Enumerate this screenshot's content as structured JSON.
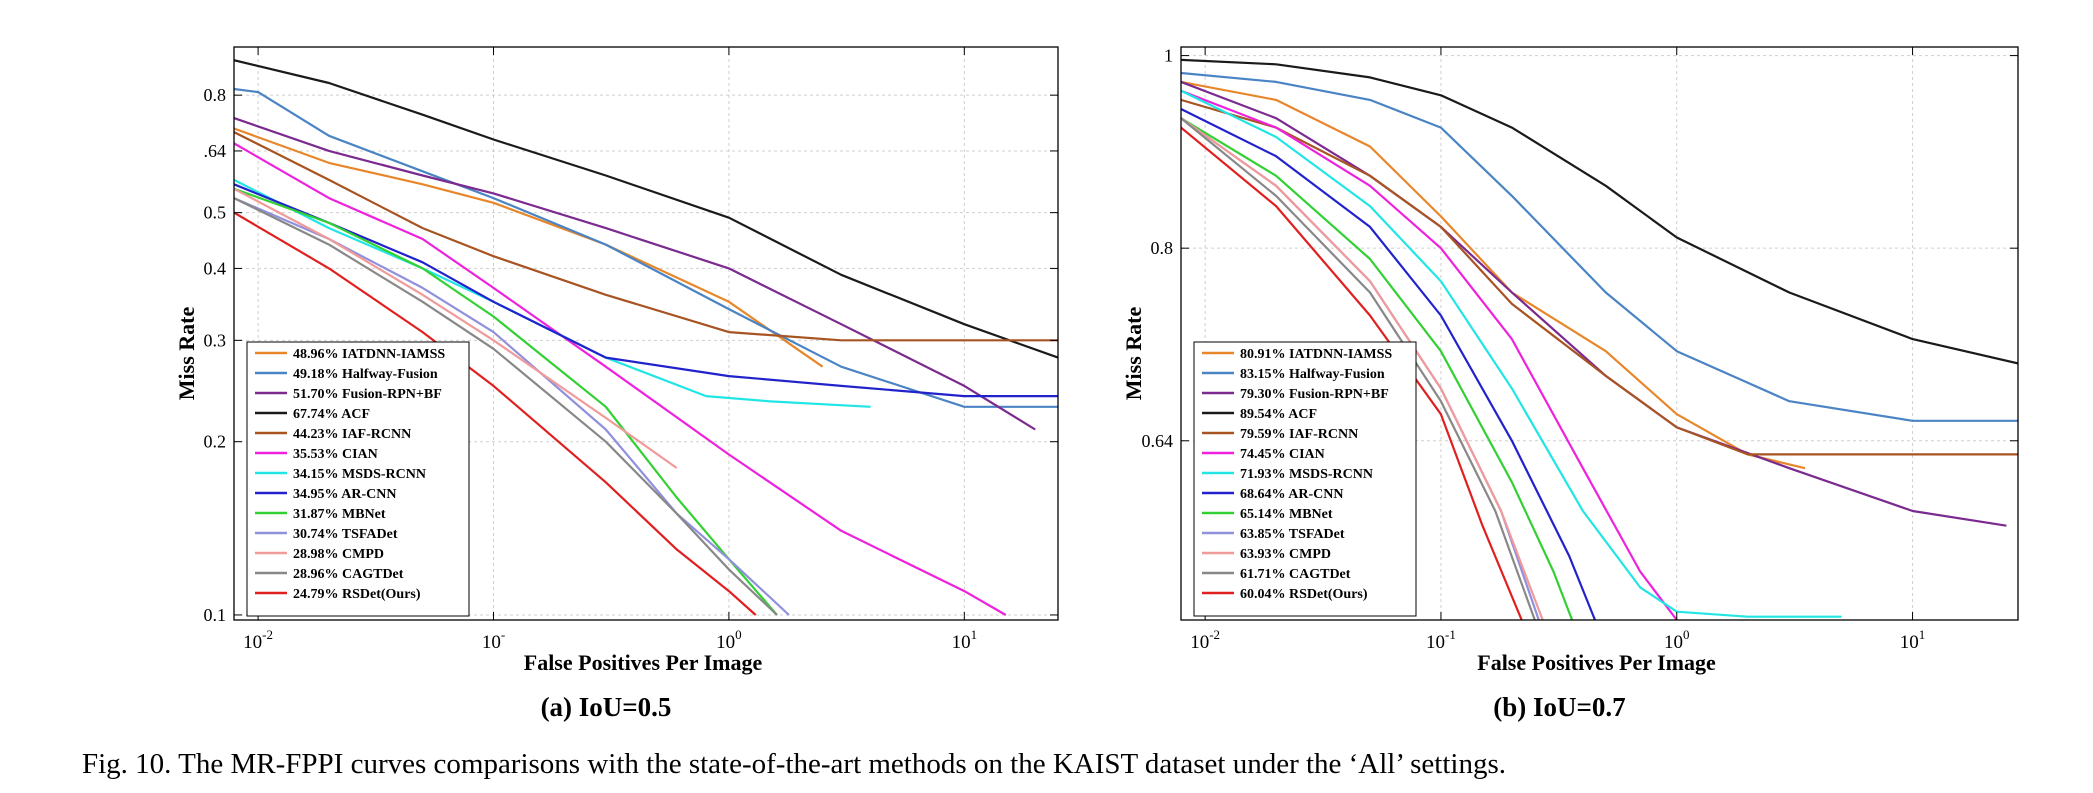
{
  "caption": "Fig. 10.  The MR-FPPI curves comparisons with the state-of-the-art methods on the KAIST dataset under the ‘All’ settings.",
  "chart_data": [
    {
      "type": "line",
      "subtitle": "(a)  IoU=0.5",
      "xlabel": "False Positives Per Image",
      "ylabel": "Miss Rate",
      "xscale": "log",
      "yscale": "log",
      "xlim": [
        0.0079,
        25
      ],
      "ylim": [
        0.098,
        0.97
      ],
      "grid": true,
      "legend_position": "bottom-left",
      "xticks": [
        {
          "value": 0.01,
          "base": "10",
          "exp": "-2"
        },
        {
          "value": 0.1,
          "base": "10",
          "exp": "-"
        },
        {
          "value": 1,
          "base": "10",
          "exp": "0"
        },
        {
          "value": 10,
          "base": "10",
          "exp": "1"
        }
      ],
      "yticks": [
        {
          "value": 0.1,
          "label": "0.1"
        },
        {
          "value": 0.2,
          "label": "0.2"
        },
        {
          "value": 0.3,
          "label": "0.3"
        },
        {
          "value": 0.4,
          "label": "0.4"
        },
        {
          "value": 0.5,
          "label": "0.5"
        },
        {
          "value": 0.64,
          "label": ".64"
        },
        {
          "value": 0.8,
          "label": "0.8"
        }
      ],
      "series": [
        {
          "name": "48.96% IATDNN-IAMSS",
          "color": "#e8862a",
          "points": [
            [
              0.0079,
              0.7
            ],
            [
              0.02,
              0.61
            ],
            [
              0.05,
              0.56
            ],
            [
              0.1,
              0.52
            ],
            [
              0.3,
              0.44
            ],
            [
              1,
              0.35
            ],
            [
              2.5,
              0.27
            ]
          ]
        },
        {
          "name": "49.18% Halfway-Fusion",
          "color": "#4a84c4",
          "points": [
            [
              0.0079,
              0.82
            ],
            [
              0.01,
              0.81
            ],
            [
              0.02,
              0.68
            ],
            [
              0.05,
              0.59
            ],
            [
              0.1,
              0.53
            ],
            [
              0.3,
              0.44
            ],
            [
              1,
              0.34
            ],
            [
              3,
              0.27
            ],
            [
              10,
              0.23
            ],
            [
              25,
              0.23
            ]
          ]
        },
        {
          "name": "51.70% Fusion-RPN+BF",
          "color": "#7b2a8f",
          "points": [
            [
              0.0079,
              0.73
            ],
            [
              0.02,
              0.64
            ],
            [
              0.05,
              0.58
            ],
            [
              0.1,
              0.54
            ],
            [
              0.3,
              0.47
            ],
            [
              1,
              0.4
            ],
            [
              3,
              0.32
            ],
            [
              10,
              0.25
            ],
            [
              20,
              0.21
            ]
          ]
        },
        {
          "name": "67.74% ACF",
          "color": "#1a1a1a",
          "points": [
            [
              0.0079,
              0.92
            ],
            [
              0.02,
              0.84
            ],
            [
              0.05,
              0.74
            ],
            [
              0.1,
              0.67
            ],
            [
              0.3,
              0.58
            ],
            [
              1,
              0.49
            ],
            [
              3,
              0.39
            ],
            [
              10,
              0.32
            ],
            [
              25,
              0.28
            ]
          ]
        },
        {
          "name": "44.23% IAF-RCNN",
          "color": "#a85422",
          "points": [
            [
              0.0079,
              0.69
            ],
            [
              0.02,
              0.57
            ],
            [
              0.05,
              0.47
            ],
            [
              0.1,
              0.42
            ],
            [
              0.3,
              0.36
            ],
            [
              1,
              0.31
            ],
            [
              3,
              0.3
            ],
            [
              25,
              0.3
            ]
          ]
        },
        {
          "name": "35.53% CIAN",
          "color": "#ee22dd",
          "points": [
            [
              0.0079,
              0.66
            ],
            [
              0.02,
              0.53
            ],
            [
              0.05,
              0.45
            ],
            [
              0.1,
              0.37
            ],
            [
              0.3,
              0.27
            ],
            [
              1,
              0.19
            ],
            [
              3,
              0.14
            ],
            [
              10,
              0.11
            ],
            [
              15,
              0.1
            ]
          ]
        },
        {
          "name": "34.15% MSDS-RCNN",
          "color": "#22e5e5",
          "points": [
            [
              0.0079,
              0.57
            ],
            [
              0.02,
              0.47
            ],
            [
              0.05,
              0.4
            ],
            [
              0.1,
              0.35
            ],
            [
              0.3,
              0.28
            ],
            [
              0.8,
              0.24
            ],
            [
              1.5,
              0.235
            ],
            [
              4,
              0.23
            ]
          ]
        },
        {
          "name": "34.95% AR-CNN",
          "color": "#2222cc",
          "points": [
            [
              0.0079,
              0.56
            ],
            [
              0.02,
              0.48
            ],
            [
              0.05,
              0.41
            ],
            [
              0.1,
              0.35
            ],
            [
              0.3,
              0.28
            ],
            [
              1,
              0.26
            ],
            [
              3,
              0.25
            ],
            [
              10,
              0.24
            ],
            [
              25,
              0.24
            ]
          ]
        },
        {
          "name": "31.87% MBNet",
          "color": "#33d033",
          "points": [
            [
              0.0079,
              0.55
            ],
            [
              0.02,
              0.48
            ],
            [
              0.05,
              0.4
            ],
            [
              0.1,
              0.33
            ],
            [
              0.3,
              0.23
            ],
            [
              0.6,
              0.16
            ],
            [
              1,
              0.125
            ],
            [
              1.6,
              0.1
            ]
          ]
        },
        {
          "name": "30.74% TSFADet",
          "color": "#9090dd",
          "points": [
            [
              0.0079,
              0.53
            ],
            [
              0.02,
              0.45
            ],
            [
              0.05,
              0.37
            ],
            [
              0.1,
              0.31
            ],
            [
              0.3,
              0.21
            ],
            [
              0.6,
              0.15
            ],
            [
              1,
              0.125
            ],
            [
              1.8,
              0.1
            ]
          ]
        },
        {
          "name": "28.98% CMPD",
          "color": "#f09a9a",
          "points": [
            [
              0.0079,
              0.55
            ],
            [
              0.02,
              0.45
            ],
            [
              0.05,
              0.36
            ],
            [
              0.1,
              0.3
            ],
            [
              0.3,
              0.22
            ],
            [
              0.6,
              0.18
            ]
          ]
        },
        {
          "name": "28.96% CAGTDet",
          "color": "#888888",
          "points": [
            [
              0.0079,
              0.53
            ],
            [
              0.02,
              0.44
            ],
            [
              0.05,
              0.35
            ],
            [
              0.1,
              0.29
            ],
            [
              0.3,
              0.2
            ],
            [
              0.6,
              0.15
            ],
            [
              1,
              0.12
            ],
            [
              1.6,
              0.1
            ]
          ]
        },
        {
          "name": "24.79% RSDet(Ours)",
          "color": "#e02020",
          "points": [
            [
              0.0079,
              0.5
            ],
            [
              0.02,
              0.4
            ],
            [
              0.05,
              0.31
            ],
            [
              0.1,
              0.25
            ],
            [
              0.3,
              0.17
            ],
            [
              0.6,
              0.13
            ],
            [
              1,
              0.11
            ],
            [
              1.3,
              0.1
            ]
          ]
        }
      ]
    },
    {
      "type": "line",
      "subtitle": "(b)  IoU=0.7",
      "xlabel": "False Positives Per Image",
      "ylabel": "Miss Rate",
      "xscale": "log",
      "yscale": "log",
      "xlim": [
        0.0079,
        28
      ],
      "ylim": [
        0.52,
        1.01
      ],
      "grid": true,
      "legend_position": "bottom-left",
      "xticks": [
        {
          "value": 0.01,
          "base": "10",
          "exp": "-2"
        },
        {
          "value": 0.1,
          "base": "10",
          "exp": "-1"
        },
        {
          "value": 1,
          "base": "10",
          "exp": "0"
        },
        {
          "value": 10,
          "base": "10",
          "exp": "1"
        }
      ],
      "yticks": [
        {
          "value": 0.64,
          "label": "0.64"
        },
        {
          "value": 0.8,
          "label": "0.8"
        },
        {
          "value": 1.0,
          "label": "1"
        }
      ],
      "series": [
        {
          "name": "80.91% IATDNN-IAMSS",
          "color": "#e8862a",
          "points": [
            [
              0.0079,
              0.97
            ],
            [
              0.02,
              0.95
            ],
            [
              0.05,
              0.9
            ],
            [
              0.1,
              0.83
            ],
            [
              0.2,
              0.76
            ],
            [
              0.5,
              0.71
            ],
            [
              1,
              0.66
            ],
            [
              2,
              0.63
            ],
            [
              3.5,
              0.62
            ]
          ]
        },
        {
          "name": "83.15% Halfway-Fusion",
          "color": "#4a84c4",
          "points": [
            [
              0.0079,
              0.98
            ],
            [
              0.02,
              0.97
            ],
            [
              0.05,
              0.95
            ],
            [
              0.1,
              0.92
            ],
            [
              0.2,
              0.85
            ],
            [
              0.5,
              0.76
            ],
            [
              1,
              0.71
            ],
            [
              3,
              0.67
            ],
            [
              10,
              0.655
            ],
            [
              28,
              0.655
            ]
          ]
        },
        {
          "name": "79.30% Fusion-RPN+BF",
          "color": "#7b2a8f",
          "points": [
            [
              0.0079,
              0.97
            ],
            [
              0.02,
              0.93
            ],
            [
              0.05,
              0.87
            ],
            [
              0.1,
              0.82
            ],
            [
              0.2,
              0.76
            ],
            [
              0.5,
              0.69
            ],
            [
              1,
              0.65
            ],
            [
              3,
              0.62
            ],
            [
              10,
              0.59
            ],
            [
              25,
              0.58
            ]
          ]
        },
        {
          "name": "89.54% ACF",
          "color": "#1a1a1a",
          "points": [
            [
              0.0079,
              0.995
            ],
            [
              0.02,
              0.99
            ],
            [
              0.05,
              0.975
            ],
            [
              0.1,
              0.955
            ],
            [
              0.2,
              0.92
            ],
            [
              0.5,
              0.86
            ],
            [
              1,
              0.81
            ],
            [
              3,
              0.76
            ],
            [
              10,
              0.72
            ],
            [
              28,
              0.7
            ]
          ]
        },
        {
          "name": "79.59% IAF-RCNN",
          "color": "#a85422",
          "points": [
            [
              0.0079,
              0.95
            ],
            [
              0.02,
              0.92
            ],
            [
              0.05,
              0.87
            ],
            [
              0.1,
              0.82
            ],
            [
              0.2,
              0.75
            ],
            [
              0.5,
              0.69
            ],
            [
              1,
              0.65
            ],
            [
              2,
              0.63
            ],
            [
              28,
              0.63
            ]
          ]
        },
        {
          "name": "74.45% CIAN",
          "color": "#ee22dd",
          "points": [
            [
              0.0079,
              0.96
            ],
            [
              0.02,
              0.92
            ],
            [
              0.05,
              0.86
            ],
            [
              0.1,
              0.8
            ],
            [
              0.2,
              0.72
            ],
            [
              0.4,
              0.62
            ],
            [
              0.7,
              0.55
            ],
            [
              1,
              0.52
            ]
          ]
        },
        {
          "name": "71.93% MSDS-RCNN",
          "color": "#22e5e5",
          "points": [
            [
              0.0079,
              0.96
            ],
            [
              0.02,
              0.91
            ],
            [
              0.05,
              0.84
            ],
            [
              0.1,
              0.77
            ],
            [
              0.2,
              0.68
            ],
            [
              0.4,
              0.59
            ],
            [
              0.7,
              0.54
            ],
            [
              1,
              0.525
            ],
            [
              2,
              0.522
            ],
            [
              5,
              0.522
            ]
          ]
        },
        {
          "name": "68.64% AR-CNN",
          "color": "#2222cc",
          "points": [
            [
              0.0079,
              0.94
            ],
            [
              0.02,
              0.89
            ],
            [
              0.05,
              0.82
            ],
            [
              0.1,
              0.74
            ],
            [
              0.2,
              0.64
            ],
            [
              0.35,
              0.56
            ],
            [
              0.45,
              0.52
            ]
          ]
        },
        {
          "name": "65.14% MBNet",
          "color": "#33d033",
          "points": [
            [
              0.0079,
              0.93
            ],
            [
              0.02,
              0.87
            ],
            [
              0.05,
              0.79
            ],
            [
              0.1,
              0.71
            ],
            [
              0.2,
              0.61
            ],
            [
              0.3,
              0.55
            ],
            [
              0.36,
              0.52
            ]
          ]
        },
        {
          "name": "63.85% TSFADet",
          "color": "#9090dd",
          "points": [
            [
              0.0079,
              0.93
            ],
            [
              0.02,
              0.86
            ],
            [
              0.05,
              0.77
            ],
            [
              0.1,
              0.68
            ],
            [
              0.18,
              0.59
            ],
            [
              0.26,
              0.52
            ]
          ]
        },
        {
          "name": "63.93% CMPD",
          "color": "#f09a9a",
          "points": [
            [
              0.0079,
              0.93
            ],
            [
              0.02,
              0.86
            ],
            [
              0.05,
              0.77
            ],
            [
              0.1,
              0.68
            ],
            [
              0.18,
              0.59
            ],
            [
              0.27,
              0.52
            ]
          ]
        },
        {
          "name": "61.71% CAGTDet",
          "color": "#888888",
          "points": [
            [
              0.0079,
              0.93
            ],
            [
              0.02,
              0.85
            ],
            [
              0.05,
              0.76
            ],
            [
              0.1,
              0.67
            ],
            [
              0.17,
              0.59
            ],
            [
              0.25,
              0.52
            ]
          ]
        },
        {
          "name": "60.04% RSDet(Ours)",
          "color": "#e02020",
          "points": [
            [
              0.0079,
              0.92
            ],
            [
              0.02,
              0.84
            ],
            [
              0.05,
              0.74
            ],
            [
              0.1,
              0.66
            ],
            [
              0.15,
              0.58
            ],
            [
              0.22,
              0.52
            ]
          ]
        }
      ]
    }
  ]
}
